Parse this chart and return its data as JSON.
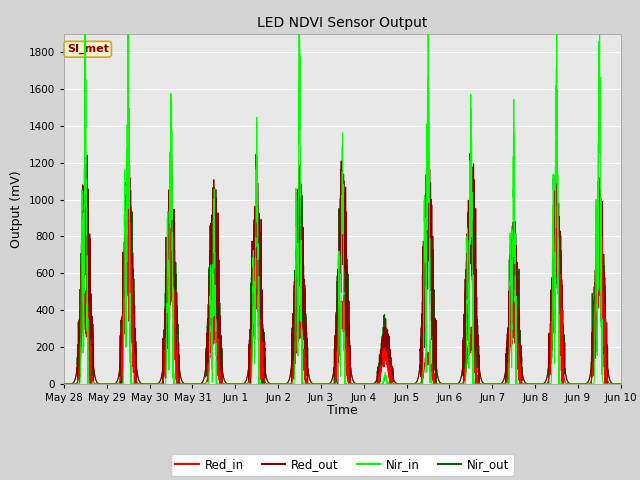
{
  "title": "LED NDVI Sensor Output",
  "xlabel": "Time",
  "ylabel": "Output (mV)",
  "ylim": [
    0,
    1900
  ],
  "plot_bg_color": "#e8e8e8",
  "fig_bg_color": "#d4d4d4",
  "legend_label": "SI_met",
  "legend_bg": "#f5f0c8",
  "legend_border": "#c8a832",
  "series_colors": {
    "Red_in": "#ff0000",
    "Red_out": "#8b0000",
    "Nir_in": "#00ff00",
    "Nir_out": "#006400"
  },
  "x_tick_labels": [
    "May 28",
    "May 29",
    "May 30",
    "May 31",
    "Jun 1",
    "Jun 2",
    "Jun 3",
    "Jun 4",
    "Jun 5",
    "Jun 6",
    "Jun 7",
    "Jun 8",
    "Jun 9",
    "Jun 10"
  ],
  "x_tick_positions": [
    0,
    1,
    2,
    3,
    4,
    5,
    6,
    7,
    8,
    9,
    10,
    11,
    12,
    13
  ],
  "yticks": [
    0,
    200,
    400,
    600,
    800,
    1000,
    1200,
    1400,
    1600,
    1800
  ],
  "n_days": 13,
  "nir_in_peaks": [
    1650,
    1780,
    1430,
    930,
    1190,
    1650,
    1100,
    50,
    1600,
    1450,
    1260,
    1690,
    1710
  ],
  "nir_out_peaks": [
    900,
    950,
    870,
    850,
    830,
    870,
    900,
    260,
    950,
    930,
    680,
    860,
    860
  ],
  "red_in_peaks": [
    430,
    750,
    620,
    300,
    500,
    320,
    390,
    150,
    150,
    240,
    350,
    760,
    760
  ],
  "red_out_peaks": [
    900,
    950,
    870,
    850,
    830,
    870,
    900,
    260,
    950,
    930,
    680,
    860,
    860
  ]
}
